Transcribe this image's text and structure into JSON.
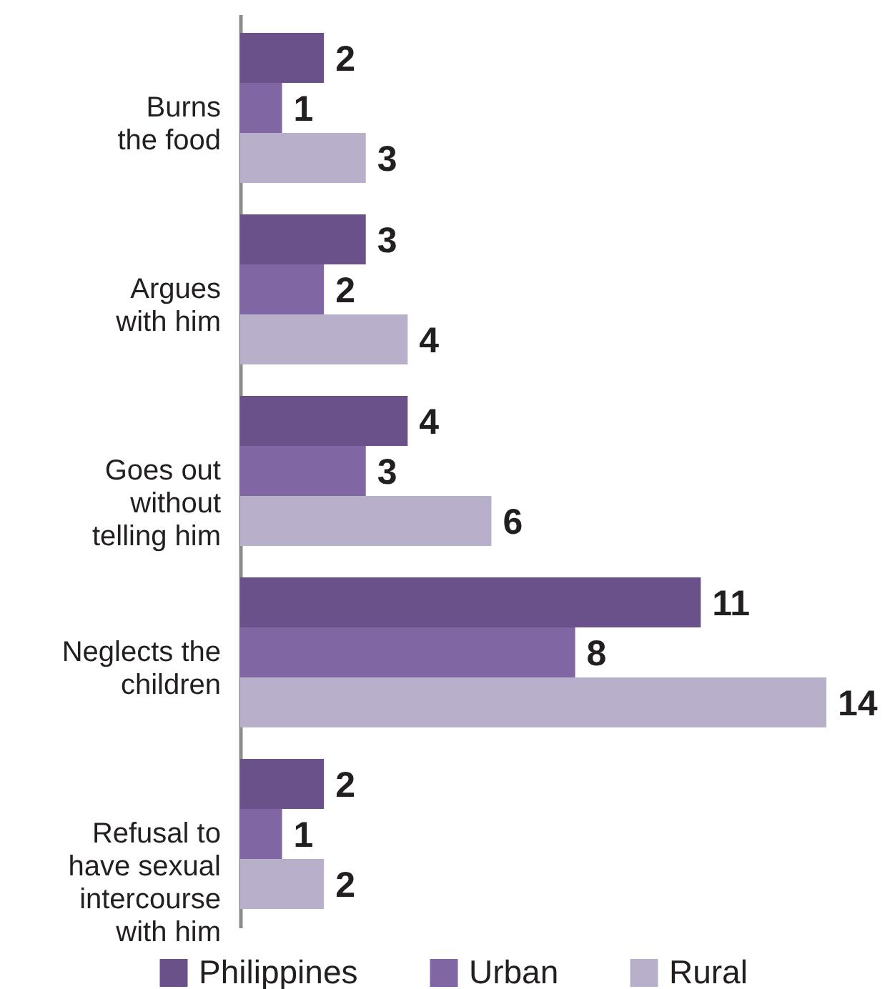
{
  "chart_data": {
    "type": "bar",
    "orientation": "horizontal",
    "categories": [
      "Burns\nthe food",
      "Argues\nwith him",
      "Goes out\nwithout\ntelling him",
      "Neglects the\nchildren",
      "Refusal to\nhave sexual\nintercourse\nwith him"
    ],
    "series": [
      {
        "name": "Philippines",
        "color": "#6a5189",
        "values": [
          2,
          3,
          4,
          11,
          2
        ]
      },
      {
        "name": "Urban",
        "color": "#8066a3",
        "values": [
          1,
          2,
          3,
          8,
          1
        ]
      },
      {
        "name": "Rural",
        "color": "#b8b0ca",
        "values": [
          3,
          4,
          6,
          14,
          2
        ]
      }
    ],
    "data_labels": true,
    "legend": "bottom",
    "grid": false
  }
}
